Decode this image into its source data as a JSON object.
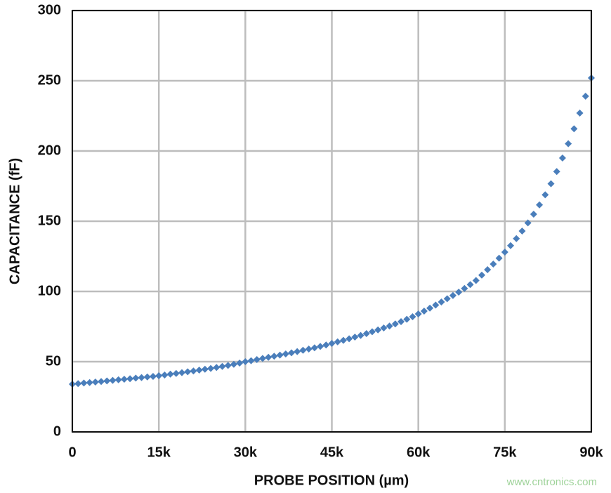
{
  "chart_data": {
    "type": "scatter",
    "xlabel": "PROBE POSITION (µm)",
    "ylabel": "CAPACITANCE (fF)",
    "watermark": "www.cntronics.com",
    "xlim": [
      0,
      90000
    ],
    "ylim": [
      0,
      300
    ],
    "xticks": [
      0,
      {
        "value": 15000,
        "label": "15k"
      },
      {
        "value": 30000,
        "label": "30k"
      },
      {
        "value": 45000,
        "label": "45k"
      },
      {
        "value": 60000,
        "label": "60k"
      },
      {
        "value": 75000,
        "label": "75k"
      },
      {
        "value": 90000,
        "label": "90k"
      }
    ],
    "yticks": [
      0,
      50,
      100,
      150,
      200,
      250,
      300
    ],
    "grid": true,
    "series": [
      {
        "color": "#4a7ebb",
        "x": [
          0,
          1000,
          2000,
          3000,
          4000,
          5000,
          6000,
          7000,
          8000,
          9000,
          10000,
          11000,
          12000,
          13000,
          14000,
          15000,
          16000,
          17000,
          18000,
          19000,
          20000,
          21000,
          22000,
          23000,
          24000,
          25000,
          26000,
          27000,
          28000,
          29000,
          30000,
          31000,
          32000,
          33000,
          34000,
          35000,
          36000,
          37000,
          38000,
          39000,
          40000,
          41000,
          42000,
          43000,
          44000,
          45000,
          46000,
          47000,
          48000,
          49000,
          50000,
          51000,
          52000,
          53000,
          54000,
          55000,
          56000,
          57000,
          58000,
          59000,
          60000,
          61000,
          62000,
          63000,
          64000,
          65000,
          66000,
          67000,
          68000,
          69000,
          70000,
          71000,
          72000,
          73000,
          74000,
          75000,
          76000,
          77000,
          78000,
          79000,
          80000,
          81000,
          82000,
          83000,
          84000,
          85000,
          86000,
          87000,
          88000,
          89000,
          90000
        ],
        "values": [
          34,
          34.4,
          34.8,
          35.1,
          35.5,
          35.9,
          36.3,
          36.7,
          37.1,
          37.5,
          37.9,
          38.3,
          38.7,
          39.1,
          39.5,
          40,
          40.5,
          41.1,
          41.6,
          42.2,
          42.8,
          43.4,
          44,
          44.6,
          45.2,
          45.9,
          46.6,
          47.3,
          48.1,
          49,
          50,
          50.7,
          51.5,
          52.3,
          53.1,
          53.9,
          54.7,
          55.5,
          56.3,
          57.2,
          58.1,
          59,
          59.9,
          60.9,
          61.9,
          63,
          64.1,
          65.2,
          66.3,
          67.5,
          68.7,
          70,
          71.3,
          72.6,
          74,
          75.4,
          76.9,
          78.5,
          80.2,
          82,
          84,
          86,
          88.1,
          90.3,
          92.5,
          94.8,
          97.1,
          99.5,
          102.1,
          104.9,
          107.8,
          111.6,
          115.5,
          119.5,
          123.7,
          128,
          132.6,
          137.6,
          143,
          148.8,
          155,
          161.6,
          168.8,
          176.7,
          185.4,
          195,
          205.2,
          215.8,
          227,
          239,
          252
        ]
      }
    ]
  }
}
